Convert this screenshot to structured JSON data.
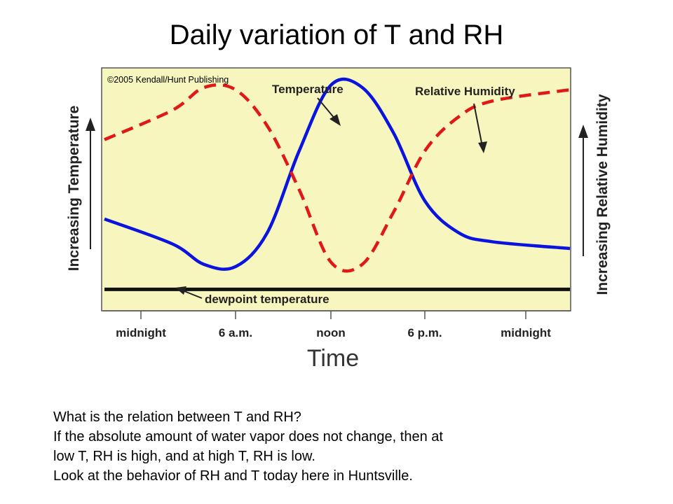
{
  "slide": {
    "title": "Daily variation of T and RH",
    "notes": [
      "What is the relation between T and RH?",
      "If the absolute amount of water vapor does not change, then at",
      "low T, RH is high, and at high T, RH is low.",
      "Look at the behavior of RH and T today here in Huntsville."
    ]
  },
  "chart_data": {
    "type": "line",
    "copyright": "©2005 Kendall/Hunt Publishing",
    "xlabel": "Time",
    "ylabel_left": "Increasing Temperature",
    "ylabel_right": "Increasing Relative Humidity",
    "x_ticks": [
      "midnight",
      "6 a.m.",
      "noon",
      "6 p.m.",
      "midnight"
    ],
    "x": [
      0,
      2,
      4,
      6,
      8,
      10,
      12,
      14,
      16,
      18,
      20,
      22,
      24
    ],
    "grid": false,
    "legend": "none",
    "values_note": "no numeric scale; relative levels 0-1",
    "series": [
      {
        "name": "Temperature",
        "color": "#0a14dc",
        "style": "solid",
        "values": [
          0.38,
          0.27,
          0.18,
          0.17,
          0.32,
          0.68,
          0.97,
          0.96,
          0.76,
          0.46,
          0.32,
          0.28,
          0.25
        ]
      },
      {
        "name": "Relative Humidity",
        "color": "#e01818",
        "style": "dashed",
        "values": [
          0.73,
          0.86,
          0.96,
          0.95,
          0.79,
          0.51,
          0.19,
          0.18,
          0.41,
          0.68,
          0.83,
          0.9,
          0.95
        ]
      },
      {
        "name": "dewpoint temperature",
        "color": "#111111",
        "style": "solid",
        "values": [
          0.07,
          0.07,
          0.07,
          0.07,
          0.07,
          0.07,
          0.07,
          0.07,
          0.07,
          0.07,
          0.07,
          0.07,
          0.07
        ]
      }
    ],
    "annotations": [
      "Temperature",
      "Relative Humidity",
      "dewpoint temperature"
    ],
    "colors": {
      "plot_background": "#f8f6bf",
      "plot_border": "#555555"
    }
  }
}
